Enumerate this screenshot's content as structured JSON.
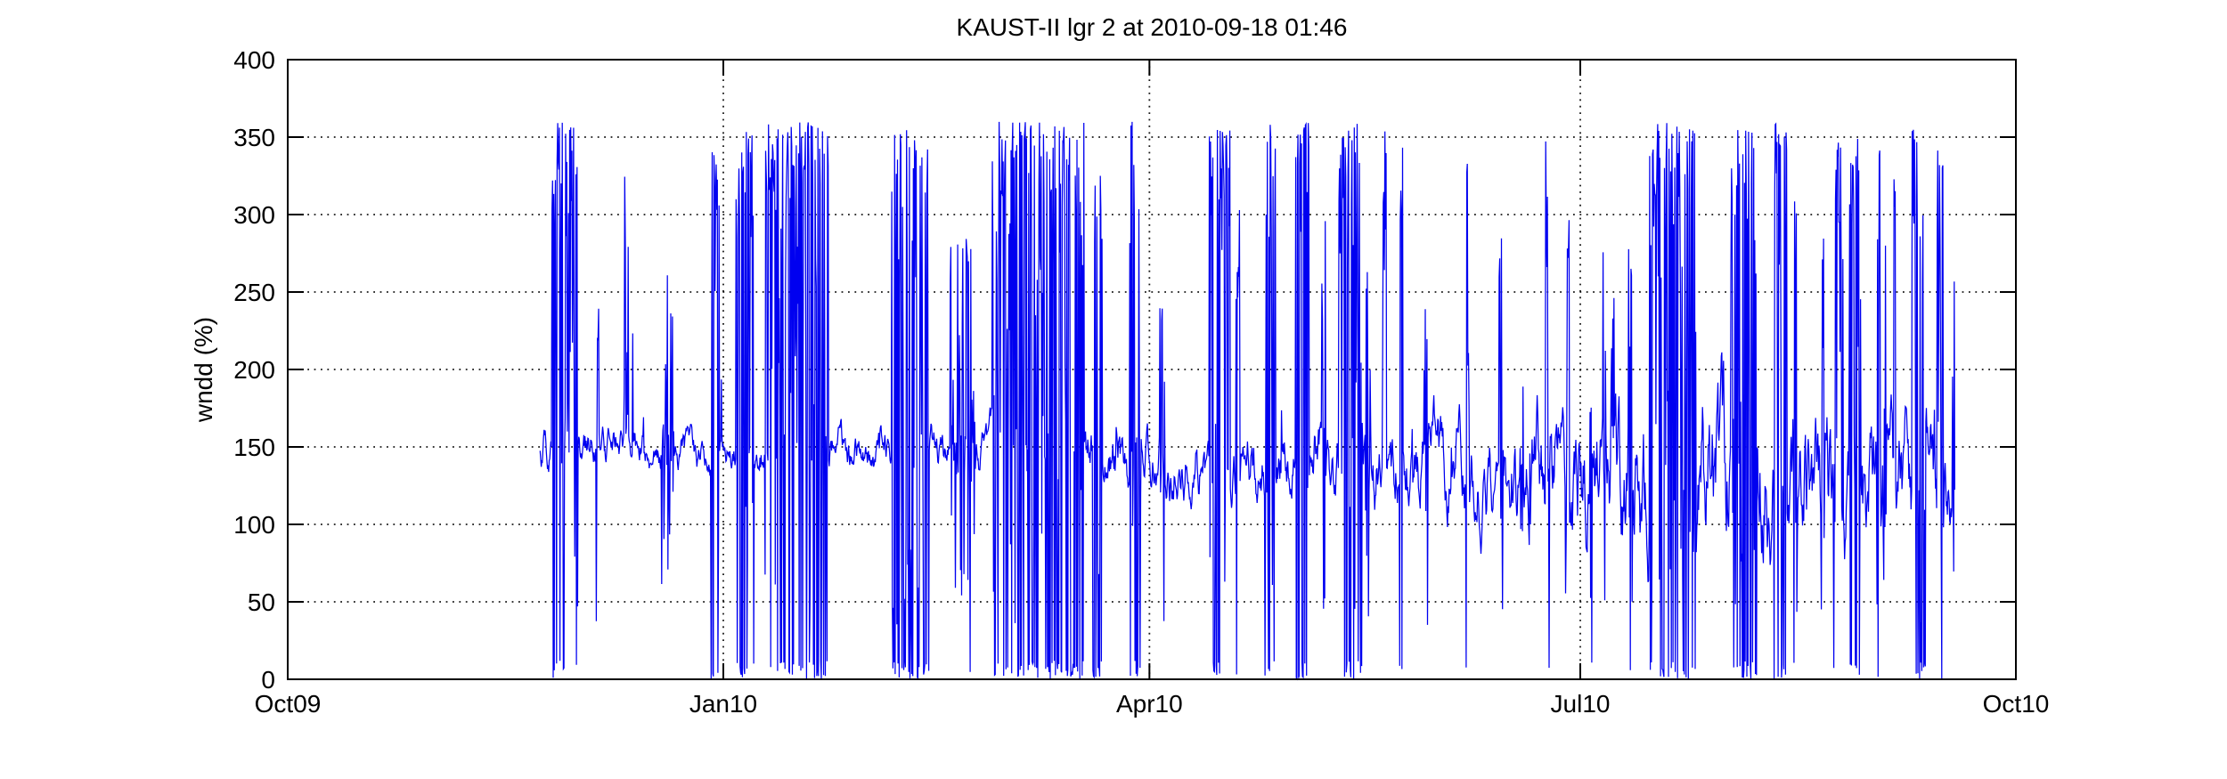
{
  "page": {
    "background": "#ffffff"
  },
  "chart_data": {
    "type": "line",
    "title": "KAUST-II lgr 2 at 2010-09-18 01:46",
    "xlabel": "",
    "ylabel": "wndd (%)",
    "x_axis_epoch": "2009-10-01",
    "xlim_days": [
      0,
      365
    ],
    "ylim": [
      0,
      400
    ],
    "x_ticks": {
      "days": [
        0,
        92,
        182,
        273,
        365
      ],
      "labels": [
        "Oct09",
        "Jan10",
        "Apr10",
        "Jul10",
        "Oct10"
      ]
    },
    "y_ticks": [
      0,
      50,
      100,
      150,
      200,
      250,
      300,
      350,
      400
    ],
    "grid": {
      "on": true,
      "style": "dotted",
      "color": "#000000"
    },
    "axes_color": "#000000",
    "legend": null,
    "series": [
      {
        "name": "wndd",
        "color": "#0000f0",
        "line_width": 1.25,
        "start_day": 53.3,
        "end_day": 352.2,
        "step_days": 0.12,
        "clamp": [
          0,
          360
        ],
        "seed": 20100918,
        "baseline_keypoints": [
          [
            53.3,
            150
          ],
          [
            60,
            152
          ],
          [
            70,
            150
          ],
          [
            80,
            148
          ],
          [
            90,
            150
          ],
          [
            100,
            150
          ],
          [
            110,
            148
          ],
          [
            118,
            145
          ],
          [
            126,
            147
          ],
          [
            135,
            150
          ],
          [
            145,
            148
          ],
          [
            152,
            146
          ],
          [
            160,
            147
          ],
          [
            168,
            144
          ],
          [
            176,
            143
          ],
          [
            184,
            143
          ],
          [
            192,
            141
          ],
          [
            200,
            140
          ],
          [
            208,
            139
          ],
          [
            216,
            141
          ],
          [
            224,
            138
          ],
          [
            232,
            136
          ],
          [
            240,
            138
          ],
          [
            248,
            135
          ],
          [
            256,
            134
          ],
          [
            264,
            135
          ],
          [
            272,
            131
          ],
          [
            280,
            129
          ],
          [
            288,
            131
          ],
          [
            296,
            128
          ],
          [
            304,
            130
          ],
          [
            312,
            126
          ],
          [
            320,
            128
          ],
          [
            328,
            125
          ],
          [
            336,
            127
          ],
          [
            344,
            123
          ],
          [
            352.2,
            132
          ]
        ],
        "noise_amp_keypoints": [
          [
            53.3,
            8
          ],
          [
            70,
            7
          ],
          [
            90,
            8
          ],
          [
            110,
            9
          ],
          [
            126,
            7
          ],
          [
            140,
            9
          ],
          [
            155,
            10
          ],
          [
            170,
            11
          ],
          [
            190,
            12
          ],
          [
            210,
            13
          ],
          [
            230,
            15
          ],
          [
            250,
            17
          ],
          [
            265,
            20
          ],
          [
            280,
            25
          ],
          [
            295,
            30
          ],
          [
            310,
            30
          ],
          [
            325,
            28
          ],
          [
            340,
            23
          ],
          [
            352.2,
            19
          ]
        ],
        "spike_clusters": [
          {
            "d": 58.5,
            "w": 5.5,
            "hi": 360,
            "up": 0.45,
            "dip": 0.22
          },
          {
            "d": 65.5,
            "w": 0.8,
            "hi": 280,
            "up": 0.4,
            "dip": 0.0
          },
          {
            "d": 71.5,
            "w": 1.0,
            "hi": 330,
            "up": 0.45,
            "dip": 0.1
          },
          {
            "d": 80.3,
            "w": 2.7,
            "hi": 265,
            "up": 0.35,
            "dip": 0.0
          },
          {
            "d": 90.3,
            "w": 1.8,
            "hi": 345,
            "up": 0.4,
            "dip": 0.2
          },
          {
            "d": 96.6,
            "w": 3.8,
            "hi": 355,
            "up": 0.45,
            "dip": 0.25
          },
          {
            "d": 107.5,
            "w": 13.5,
            "hi": 360,
            "up": 0.5,
            "dip": 0.28
          },
          {
            "d": 131.5,
            "w": 8.0,
            "hi": 355,
            "up": 0.42,
            "dip": 0.25
          },
          {
            "d": 142.5,
            "w": 5.3,
            "hi": 285,
            "up": 0.32,
            "dip": 0.05
          },
          {
            "d": 158.5,
            "w": 19.5,
            "hi": 360,
            "up": 0.45,
            "dip": 0.3
          },
          {
            "d": 171.0,
            "w": 2.0,
            "hi": 340,
            "up": 0.45,
            "dip": 0.3
          },
          {
            "d": 179.0,
            "w": 2.5,
            "hi": 360,
            "up": 0.45,
            "dip": 0.25
          },
          {
            "d": 184.7,
            "w": 1.0,
            "hi": 240,
            "up": 0.35,
            "dip": 0.0
          },
          {
            "d": 196.8,
            "w": 4.5,
            "hi": 355,
            "up": 0.45,
            "dip": 0.3
          },
          {
            "d": 200.7,
            "w": 0.8,
            "hi": 310,
            "up": 0.45,
            "dip": 0.05
          },
          {
            "d": 207.5,
            "w": 2.3,
            "hi": 360,
            "up": 0.5,
            "dip": 0.3
          },
          {
            "d": 214.3,
            "w": 2.8,
            "hi": 360,
            "up": 0.5,
            "dip": 0.32
          },
          {
            "d": 218.8,
            "w": 0.8,
            "hi": 310,
            "up": 0.45,
            "dip": 0.0
          },
          {
            "d": 224.5,
            "w": 5.0,
            "hi": 360,
            "up": 0.48,
            "dip": 0.3
          },
          {
            "d": 228.2,
            "w": 1.2,
            "hi": 280,
            "up": 0.35,
            "dip": 0.0
          },
          {
            "d": 231.6,
            "w": 0.8,
            "hi": 360,
            "up": 0.5,
            "dip": 0.1
          },
          {
            "d": 235.1,
            "w": 0.8,
            "hi": 345,
            "up": 0.45,
            "dip": 0.1
          },
          {
            "d": 240.4,
            "w": 0.8,
            "hi": 240,
            "up": 0.35,
            "dip": 0.0
          },
          {
            "d": 249.2,
            "w": 0.8,
            "hi": 340,
            "up": 0.45,
            "dip": 0.12
          },
          {
            "d": 256.2,
            "w": 0.8,
            "hi": 290,
            "up": 0.4,
            "dip": 0.0
          },
          {
            "d": 260.6,
            "w": 0.8,
            "hi": 250,
            "up": 0.35,
            "dip": 0.0
          },
          {
            "d": 266.0,
            "w": 1.0,
            "hi": 350,
            "up": 0.45,
            "dip": 0.25
          },
          {
            "d": 270.3,
            "w": 0.8,
            "hi": 300,
            "up": 0.4,
            "dip": 0.0
          },
          {
            "d": 275.3,
            "w": 0.9,
            "hi": 305,
            "up": 0.4,
            "dip": 0.1
          },
          {
            "d": 278.2,
            "w": 0.9,
            "hi": 320,
            "up": 0.4,
            "dip": 0.0
          },
          {
            "d": 279.8,
            "w": 0.8,
            "hi": 250,
            "up": 0.35,
            "dip": 0.0
          },
          {
            "d": 283.5,
            "w": 0.9,
            "hi": 280,
            "up": 0.35,
            "dip": 0.05
          },
          {
            "d": 292.5,
            "w": 9.8,
            "hi": 360,
            "up": 0.5,
            "dip": 0.3
          },
          {
            "d": 307.5,
            "w": 5.5,
            "hi": 355,
            "up": 0.45,
            "dip": 0.28
          },
          {
            "d": 315.3,
            "w": 2.8,
            "hi": 360,
            "up": 0.48,
            "dip": 0.3
          },
          {
            "d": 318.5,
            "w": 0.8,
            "hi": 330,
            "up": 0.45,
            "dip": 0.05
          },
          {
            "d": 324.2,
            "w": 0.8,
            "hi": 300,
            "up": 0.4,
            "dip": 0.05
          },
          {
            "d": 327.5,
            "w": 2.0,
            "hi": 357,
            "up": 0.45,
            "dip": 0.2
          },
          {
            "d": 331.0,
            "w": 2.6,
            "hi": 355,
            "up": 0.45,
            "dip": 0.28
          },
          {
            "d": 336.0,
            "w": 0.8,
            "hi": 357,
            "up": 0.45,
            "dip": 0.1
          },
          {
            "d": 337.3,
            "w": 0.8,
            "hi": 300,
            "up": 0.4,
            "dip": 0.05
          },
          {
            "d": 339.2,
            "w": 0.8,
            "hi": 330,
            "up": 0.45,
            "dip": 0.08
          },
          {
            "d": 344.5,
            "w": 2.8,
            "hi": 360,
            "up": 0.45,
            "dip": 0.2
          },
          {
            "d": 349.0,
            "w": 1.4,
            "hi": 360,
            "up": 0.45,
            "dip": 0.15
          },
          {
            "d": 351.8,
            "w": 0.6,
            "hi": 310,
            "up": 0.4,
            "dip": 0.0
          }
        ]
      }
    ]
  }
}
